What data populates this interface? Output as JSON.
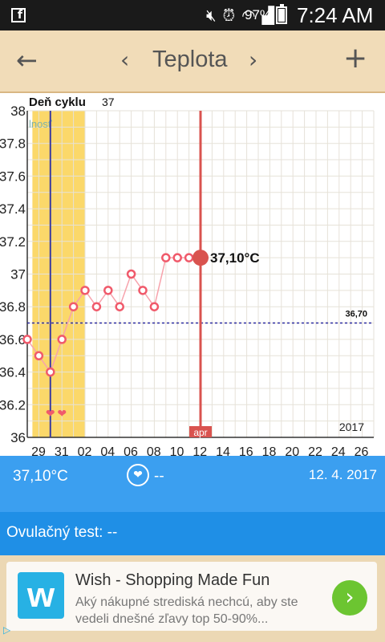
{
  "status_bar": {
    "battery_percent": "97%",
    "time": "7:24 AM",
    "app_icon_glyph": "f"
  },
  "toolbar": {
    "title": "Teplota",
    "back_glyph": "←",
    "prev_glyph": "‹",
    "next_glyph": "›",
    "add_glyph": "+"
  },
  "chart_data": {
    "type": "line",
    "header_label": "Deň cyklu",
    "header_value": "37",
    "band_label": "lnosť",
    "y_ticks": [
      "38",
      "37.8",
      "37.6",
      "37.4",
      "37.2",
      "37",
      "36.8",
      "36.6",
      "36.4",
      "36.2",
      "36"
    ],
    "x_ticks": [
      "29",
      "31",
      "02",
      "04",
      "06",
      "08",
      "10",
      "12",
      "14",
      "16",
      "18",
      "20",
      "22",
      "24",
      "26"
    ],
    "ylim": [
      36,
      38
    ],
    "year_label": "2017",
    "month_label": "apr",
    "coverline_value": 36.7,
    "coverline_label": "36,70",
    "selected_index": 15,
    "selected_label": "37,10°C",
    "heart_indices": [
      2,
      3
    ],
    "heart_glyph": "❤",
    "series": [
      {
        "values": [
          36.6,
          36.5,
          36.4,
          36.6,
          36.8,
          36.9,
          36.8,
          36.9,
          36.8,
          37.0,
          36.9,
          36.8,
          37.1,
          37.1,
          37.1,
          37.1
        ]
      }
    ],
    "colors": {
      "point": "#f05a6b",
      "line": "#f7a3ac",
      "band": "#fbd86a",
      "today": "#d9534f",
      "blue_line": "#3a3aa0"
    }
  },
  "info": {
    "temperature": "37,10°C",
    "heart_glyph": "❤",
    "sex_value": "--",
    "date": "12. 4. 2017"
  },
  "ovulation": {
    "label": "Ovulačný test: --"
  },
  "ad": {
    "logo_glyph": "w",
    "title": "Wish - Shopping Made Fun",
    "description": "Aký nákupné strediská nechcú, aby ste vedeli    dnešné zľavy top 50-90%...",
    "go_glyph": "›",
    "choices_glyph": "▷"
  }
}
